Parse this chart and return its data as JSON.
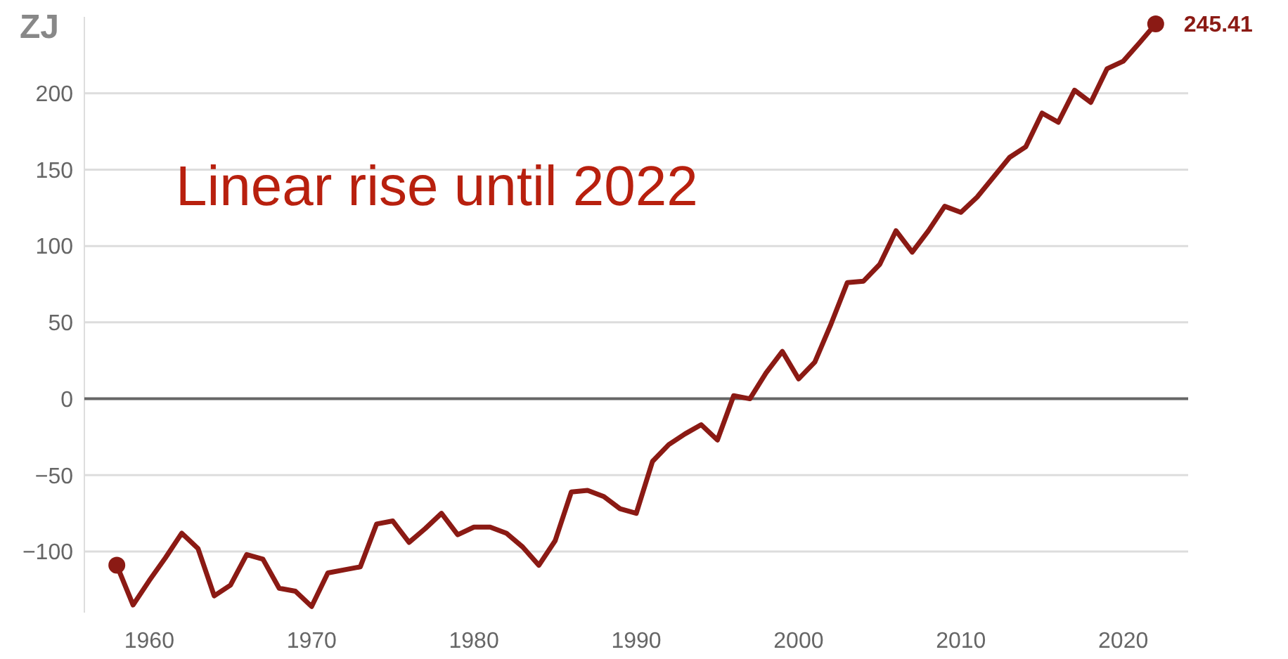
{
  "chart_data": {
    "type": "line",
    "ylabel": "ZJ",
    "x": [
      1958,
      1959,
      1960,
      1961,
      1962,
      1963,
      1964,
      1965,
      1966,
      1967,
      1968,
      1969,
      1970,
      1971,
      1972,
      1973,
      1974,
      1975,
      1976,
      1977,
      1978,
      1979,
      1980,
      1981,
      1982,
      1983,
      1984,
      1985,
      1986,
      1987,
      1988,
      1989,
      1990,
      1991,
      1992,
      1993,
      1994,
      1995,
      1996,
      1997,
      1998,
      1999,
      2000,
      2001,
      2002,
      2003,
      2004,
      2005,
      2006,
      2007,
      2008,
      2009,
      2010,
      2011,
      2012,
      2013,
      2014,
      2015,
      2016,
      2017,
      2018,
      2019,
      2020,
      2021,
      2022
    ],
    "series": [
      {
        "color": "#8b1a14",
        "values": [
          -109,
          -135,
          -119,
          -104,
          -88,
          -98,
          -129,
          -122,
          -102,
          -105,
          -124,
          -126,
          -136,
          -114,
          -112,
          -110,
          -82,
          -80,
          -94,
          -85,
          -75,
          -89,
          -84,
          -84,
          -88,
          -97,
          -109,
          -93,
          -61,
          -60,
          -64,
          -72,
          -75,
          -41,
          -30,
          -23,
          -17,
          -27,
          2,
          0,
          17,
          31,
          13,
          24,
          49,
          76,
          77,
          88,
          110,
          96,
          110,
          126,
          122,
          132,
          145,
          158,
          165,
          187,
          181,
          202,
          194,
          216,
          221,
          233,
          245.41
        ],
        "value_labels": [
          null,
          null,
          null,
          null,
          null,
          null,
          null,
          null,
          null,
          null,
          null,
          null,
          null,
          null,
          null,
          null,
          null,
          null,
          null,
          null,
          null,
          null,
          null,
          null,
          null,
          null,
          null,
          null,
          null,
          null,
          null,
          null,
          null,
          null,
          null,
          null,
          null,
          null,
          null,
          null,
          null,
          null,
          null,
          null,
          null,
          null,
          null,
          null,
          null,
          null,
          null,
          null,
          null,
          null,
          null,
          null,
          null,
          null,
          null,
          null,
          null,
          null,
          null,
          null,
          "245.41"
        ]
      }
    ],
    "xlim": [
      1956,
      2024
    ],
    "ylim": [
      -140,
      250
    ],
    "xticks": [
      1960,
      1970,
      1980,
      1990,
      2000,
      2010,
      2020
    ],
    "yticks": [
      -100,
      -50,
      0,
      50,
      100,
      150,
      200
    ],
    "grid": "y",
    "ref_lines": [
      {
        "axis": "y",
        "value": 0,
        "color": "#666666"
      }
    ],
    "annotations": [
      "Linear rise until 2022"
    ]
  }
}
